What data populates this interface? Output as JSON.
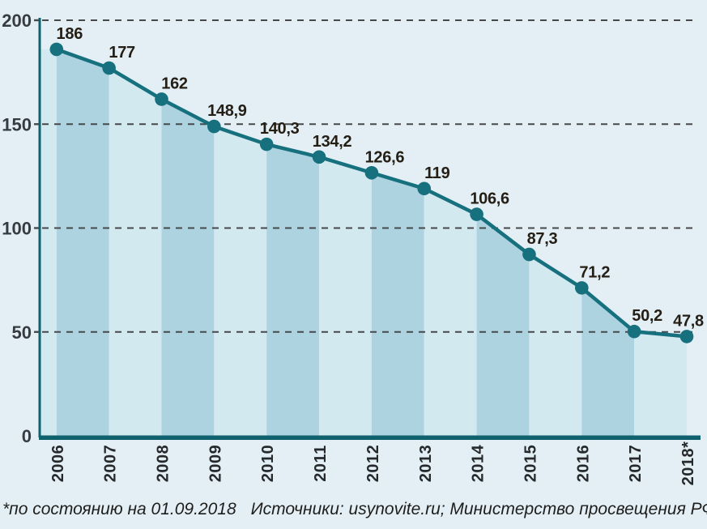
{
  "chart_data": {
    "type": "area",
    "title": "",
    "categories": [
      "2006",
      "2007",
      "2008",
      "2009",
      "2010",
      "2011",
      "2012",
      "2013",
      "2014",
      "2015",
      "2016",
      "2017",
      "2018*"
    ],
    "values": [
      186,
      177,
      162,
      148.9,
      140.3,
      134.2,
      126.6,
      119,
      106.6,
      87.3,
      71.2,
      50.2,
      47.8
    ],
    "value_labels": [
      "186",
      "177",
      "162",
      "148,9",
      "140,3",
      "134,2",
      "126,6",
      "119",
      "106,6",
      "87,3",
      "71,2",
      "50,2",
      "47,8"
    ],
    "xlabel": "",
    "ylabel": "",
    "ylim": [
      0,
      200
    ],
    "y_ticks": [
      0,
      50,
      100,
      150,
      200
    ],
    "y_tick_labels": [
      "0",
      "50",
      "100",
      "150",
      "200"
    ],
    "grid": "dashed-horizontal",
    "legend": "none",
    "band_pattern": "alternating-vertical-fills-under-line-starting-dark",
    "colors": {
      "background": "#e3eff5",
      "band_dark": "#aed3e0",
      "band_light": "#d3e9f0",
      "line": "#16707e",
      "axis": "#0e616d",
      "grid": "#46494c",
      "value_label": "#241e14",
      "tick_label": "#363c41",
      "year_label": "#26292c"
    }
  },
  "footer": {
    "footnote": "*по состоянию на 01.09.2018",
    "sources": "Источники: usynovite.ru; Министерство просвещения РФ"
  }
}
